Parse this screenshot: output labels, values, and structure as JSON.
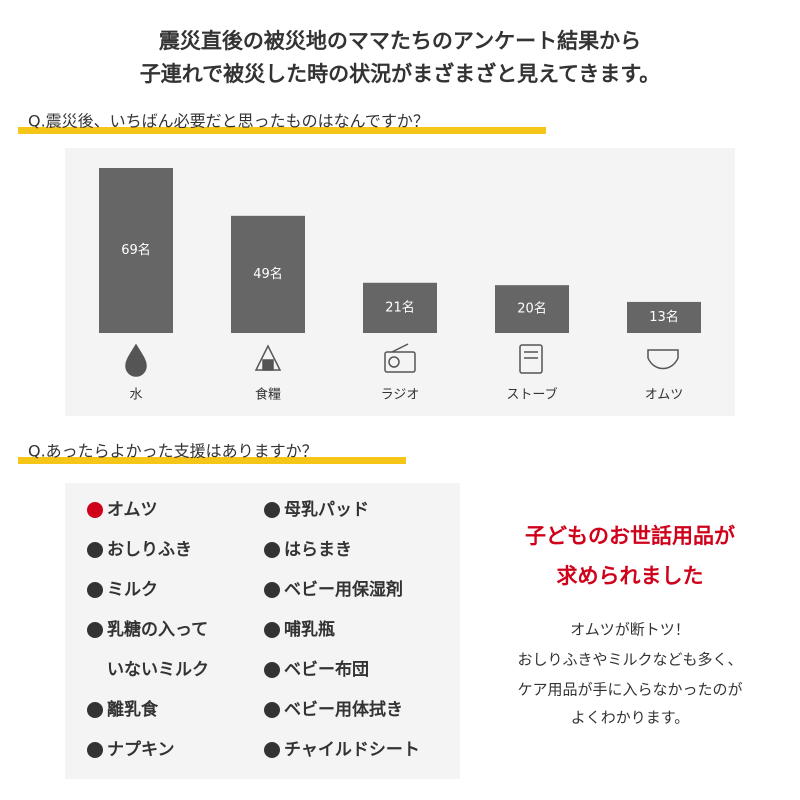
{
  "header": {
    "lines": [
      "震災直後の被災地のママたちのアンケート結果から",
      "子連れで被災した時の状況がまざまざと見えてきます。"
    ]
  },
  "chart_data": {
    "type": "bar",
    "title": "Q.震災後、いちばん必要だと思ったものはなんですか？",
    "categories": [
      "水",
      "食糧",
      "ラジオ",
      "ストーブ",
      "オムツ"
    ],
    "values": [
      69,
      49,
      21,
      20,
      13
    ],
    "value_labels": [
      "69名",
      "49名",
      "21名",
      "20名",
      "13名"
    ],
    "color": "#666666"
  },
  "question2": {
    "title": "Q.あったらよかった支援はありますか？",
    "columns": [
      [
        {
          "lines": [
            "オムツ"
          ],
          "color": "#d0021b"
        },
        {
          "lines": [
            "おしりふき"
          ]
        },
        {
          "lines": [
            "ミルク"
          ]
        },
        {
          "lines": [
            "乳糖の入って",
            "いないミルク"
          ]
        },
        {
          "lines": [
            "離乳食"
          ]
        },
        {
          "lines": [
            "ナプキン"
          ]
        }
      ],
      [
        {
          "lines": [
            "母乳パッド"
          ]
        },
        {
          "lines": [
            "はらまき"
          ]
        },
        {
          "lines": [
            "ベビー用保湿剤"
          ]
        },
        {
          "lines": [
            "哺乳瓶"
          ]
        },
        {
          "lines": [
            "ベビー布団"
          ]
        },
        {
          "lines": [
            "ベビー用体拭き"
          ]
        },
        {
          "lines": [
            "チャイルドシート"
          ]
        }
      ]
    ]
  },
  "callout": {
    "headline": [
      "子どものお世話用品が",
      "求められました"
    ],
    "body": [
      "オムツが断トツ！",
      "おしりふきやミルクなども多く、",
      "ケア用品が手に入らなかったのが",
      "よくわかります。"
    ]
  }
}
